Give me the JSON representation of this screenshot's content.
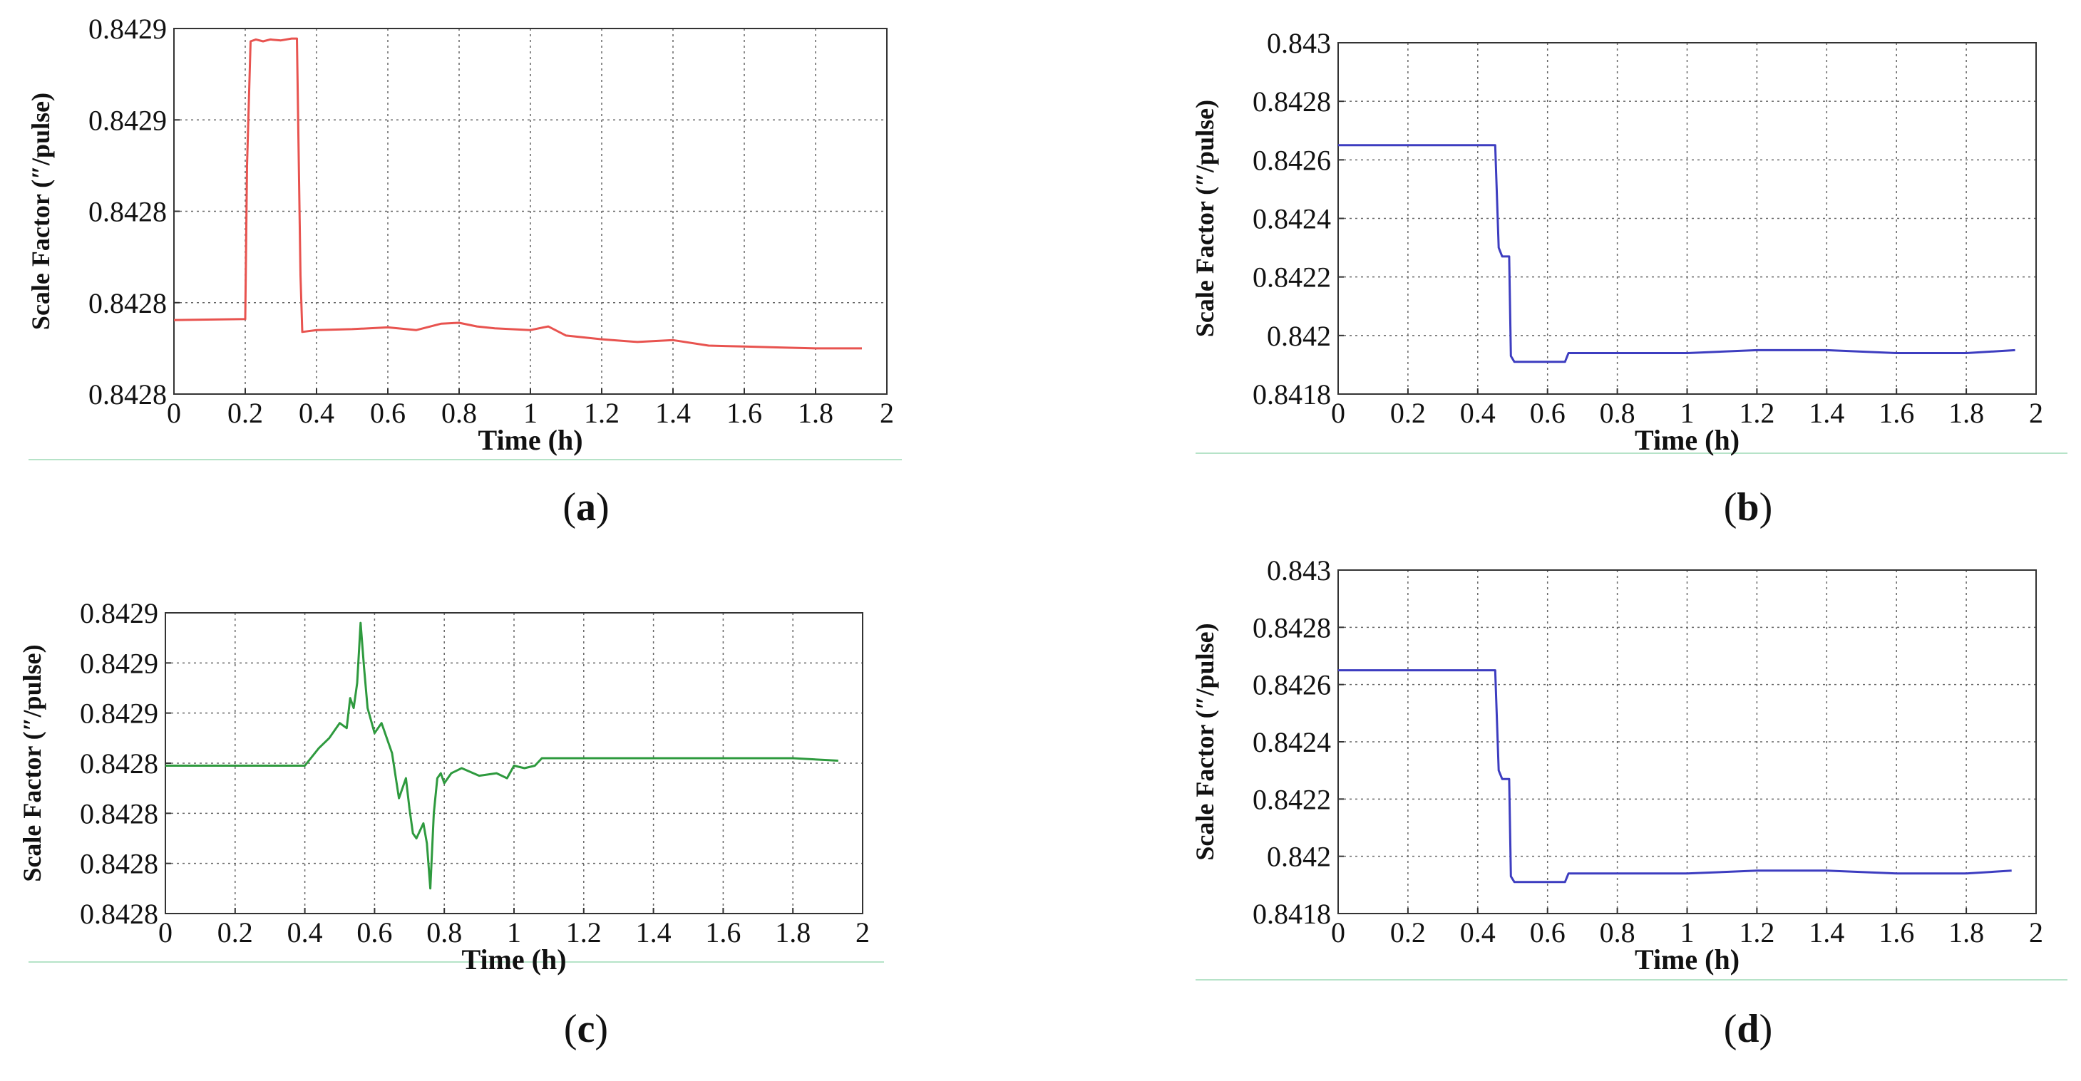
{
  "colors": {
    "a": "#e8534f",
    "b": "#3d3dc0",
    "c": "#2e9a3e",
    "d": "#3d3dc0",
    "grid": "#666666",
    "frame_line": "#b6e3c8"
  },
  "chart_data": [
    {
      "id": "a",
      "type": "line",
      "caption": {
        "open": "(",
        "letter": "a",
        "close": ")"
      },
      "xlabel": "Time (h)",
      "ylabel": "Scale Factor (″/pulse)",
      "xlim": [
        0,
        2
      ],
      "xticks": [
        0,
        0.2,
        0.4,
        0.6,
        0.8,
        1,
        1.2,
        1.4,
        1.6,
        1.8,
        2
      ],
      "xtick_labels": [
        "0",
        "0.2",
        "0.4",
        "0.6",
        "0.8",
        "1",
        "1.2",
        "1.4",
        "1.6",
        "1.8",
        "2"
      ],
      "ylim": [
        0,
        4
      ],
      "ytick_labels": [
        "0.8428",
        "0.8428",
        "0.8428",
        "0.8429",
        "0.8429"
      ],
      "grid": true,
      "series": [
        {
          "name": "scale factor",
          "color_key": "a",
          "x": [
            0,
            0.2,
            0.205,
            0.215,
            0.23,
            0.25,
            0.27,
            0.3,
            0.33,
            0.345,
            0.355,
            0.36,
            0.4,
            0.5,
            0.6,
            0.68,
            0.75,
            0.8,
            0.85,
            0.9,
            1.0,
            1.05,
            1.1,
            1.2,
            1.3,
            1.4,
            1.5,
            1.6,
            1.7,
            1.8,
            1.93
          ],
          "y": [
            0.81,
            0.82,
            2.5,
            3.86,
            3.88,
            3.86,
            3.88,
            3.87,
            3.89,
            3.89,
            1.3,
            0.68,
            0.7,
            0.71,
            0.73,
            0.7,
            0.77,
            0.78,
            0.74,
            0.72,
            0.7,
            0.74,
            0.64,
            0.6,
            0.57,
            0.59,
            0.53,
            0.52,
            0.51,
            0.5,
            0.5
          ]
        }
      ]
    },
    {
      "id": "b",
      "type": "line",
      "caption": {
        "open": "(",
        "letter": "b",
        "close": ")"
      },
      "xlabel": "Time (h)",
      "ylabel": "Scale Factor (″/pulse)",
      "xlim": [
        0,
        2
      ],
      "xticks": [
        0,
        0.2,
        0.4,
        0.6,
        0.8,
        1,
        1.2,
        1.4,
        1.6,
        1.8,
        2
      ],
      "xtick_labels": [
        "0",
        "0.2",
        "0.4",
        "0.6",
        "0.8",
        "1",
        "1.2",
        "1.4",
        "1.6",
        "1.8",
        "2"
      ],
      "ylim": [
        0.8418,
        0.843
      ],
      "yticks": [
        0.8418,
        0.842,
        0.8422,
        0.8424,
        0.8426,
        0.8428,
        0.843
      ],
      "ytick_labels": [
        "0.8418",
        "0.842",
        "0.8422",
        "0.8424",
        "0.8426",
        "0.8428",
        "0.843"
      ],
      "grid": true,
      "series": [
        {
          "name": "scale factor",
          "color_key": "b",
          "x": [
            0,
            0.45,
            0.46,
            0.47,
            0.49,
            0.495,
            0.505,
            0.55,
            0.6,
            0.65,
            0.66,
            0.7,
            0.8,
            1.0,
            1.2,
            1.4,
            1.6,
            1.8,
            1.94
          ],
          "y": [
            0.84265,
            0.84265,
            0.8423,
            0.84227,
            0.84227,
            0.84193,
            0.84191,
            0.84191,
            0.84191,
            0.84191,
            0.84194,
            0.84194,
            0.84194,
            0.84194,
            0.84195,
            0.84195,
            0.84194,
            0.84194,
            0.84195
          ]
        }
      ]
    },
    {
      "id": "c",
      "type": "line",
      "caption": {
        "open": "(",
        "letter": "c",
        "close": ")"
      },
      "xlabel": "Time (h)",
      "ylabel": "Scale Factor (″/pulse)",
      "xlim": [
        0,
        2
      ],
      "xticks": [
        0,
        0.2,
        0.4,
        0.6,
        0.8,
        1,
        1.2,
        1.4,
        1.6,
        1.8,
        2
      ],
      "xtick_labels": [
        "0",
        "0.2",
        "0.4",
        "0.6",
        "0.8",
        "1",
        "1.2",
        "1.4",
        "1.6",
        "1.8",
        "2"
      ],
      "ylim": [
        0,
        6
      ],
      "ytick_labels": [
        "0.8428",
        "0.8428",
        "0.8428",
        "0.8428",
        "0.8429",
        "0.8429",
        "0.8429"
      ],
      "grid": true,
      "series": [
        {
          "name": "scale factor",
          "color_key": "c",
          "x": [
            0,
            0.38,
            0.4,
            0.44,
            0.47,
            0.5,
            0.52,
            0.53,
            0.54,
            0.55,
            0.56,
            0.57,
            0.58,
            0.6,
            0.62,
            0.65,
            0.67,
            0.69,
            0.7,
            0.71,
            0.72,
            0.74,
            0.75,
            0.76,
            0.77,
            0.78,
            0.79,
            0.8,
            0.82,
            0.85,
            0.9,
            0.95,
            0.98,
            1.0,
            1.03,
            1.06,
            1.08,
            1.2,
            1.4,
            1.6,
            1.8,
            1.93
          ],
          "y": [
            2.95,
            2.95,
            2.95,
            3.3,
            3.5,
            3.8,
            3.7,
            4.3,
            4.1,
            4.6,
            5.8,
            4.9,
            4.1,
            3.6,
            3.8,
            3.2,
            2.3,
            2.7,
            2.1,
            1.6,
            1.5,
            1.8,
            1.4,
            0.5,
            2.0,
            2.7,
            2.8,
            2.6,
            2.8,
            2.9,
            2.75,
            2.8,
            2.7,
            2.95,
            2.9,
            2.95,
            3.1,
            3.1,
            3.1,
            3.1,
            3.1,
            3.05
          ]
        }
      ]
    },
    {
      "id": "d",
      "type": "line",
      "caption": {
        "open": "(",
        "letter": "d",
        "close": ")"
      },
      "xlabel": "Time (h)",
      "ylabel": "Scale Factor (″/pulse)",
      "xlim": [
        0,
        2
      ],
      "xticks": [
        0,
        0.2,
        0.4,
        0.6,
        0.8,
        1,
        1.2,
        1.4,
        1.6,
        1.8,
        2
      ],
      "xtick_labels": [
        "0",
        "0.2",
        "0.4",
        "0.6",
        "0.8",
        "1",
        "1.2",
        "1.4",
        "1.6",
        "1.8",
        "2"
      ],
      "ylim": [
        0.8418,
        0.843
      ],
      "yticks": [
        0.8418,
        0.842,
        0.8422,
        0.8424,
        0.8426,
        0.8428,
        0.843
      ],
      "ytick_labels": [
        "0.8418",
        "0.842",
        "0.8422",
        "0.8424",
        "0.8426",
        "0.8428",
        "0.843"
      ],
      "grid": true,
      "series": [
        {
          "name": "scale factor",
          "color_key": "d",
          "x": [
            0,
            0.45,
            0.46,
            0.47,
            0.49,
            0.495,
            0.505,
            0.55,
            0.6,
            0.65,
            0.66,
            0.7,
            0.8,
            1.0,
            1.2,
            1.4,
            1.6,
            1.8,
            1.93
          ],
          "y": [
            0.84265,
            0.84265,
            0.8423,
            0.84227,
            0.84227,
            0.84193,
            0.84191,
            0.84191,
            0.84191,
            0.84191,
            0.84194,
            0.84194,
            0.84194,
            0.84194,
            0.84195,
            0.84195,
            0.84194,
            0.84194,
            0.84195
          ]
        }
      ]
    }
  ]
}
